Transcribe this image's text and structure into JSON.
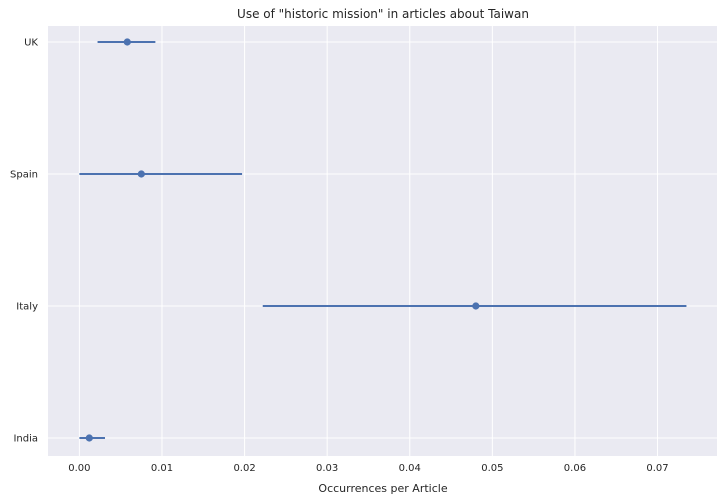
{
  "chart_data": {
    "type": "scatter",
    "style": "point estimates with horizontal error bars",
    "title": "Use of \"historic mission\" in articles about Taiwan",
    "xlabel": "Occurrences per Article",
    "ylabel": "",
    "xlim": [
      -0.0038,
      0.0772
    ],
    "x_ticks": [
      0.0,
      0.01,
      0.02,
      0.03,
      0.04,
      0.05,
      0.06,
      0.07
    ],
    "x_tick_labels": [
      "0.00",
      "0.01",
      "0.02",
      "0.03",
      "0.04",
      "0.05",
      "0.06",
      "0.07"
    ],
    "categories": [
      "UK",
      "Spain",
      "Italy",
      "India"
    ],
    "points": [
      {
        "category": "UK",
        "value": 0.0058,
        "low": 0.0022,
        "high": 0.0092
      },
      {
        "category": "Spain",
        "value": 0.0075,
        "low": 0.0,
        "high": 0.0197
      },
      {
        "category": "Italy",
        "value": 0.048,
        "low": 0.0222,
        "high": 0.0735
      },
      {
        "category": "India",
        "value": 0.0012,
        "low": 0.0,
        "high": 0.0031
      }
    ],
    "grid": true,
    "colors": {
      "background": "#eaeaf2",
      "grid": "#ffffff",
      "marker": "#4c72b0"
    }
  }
}
